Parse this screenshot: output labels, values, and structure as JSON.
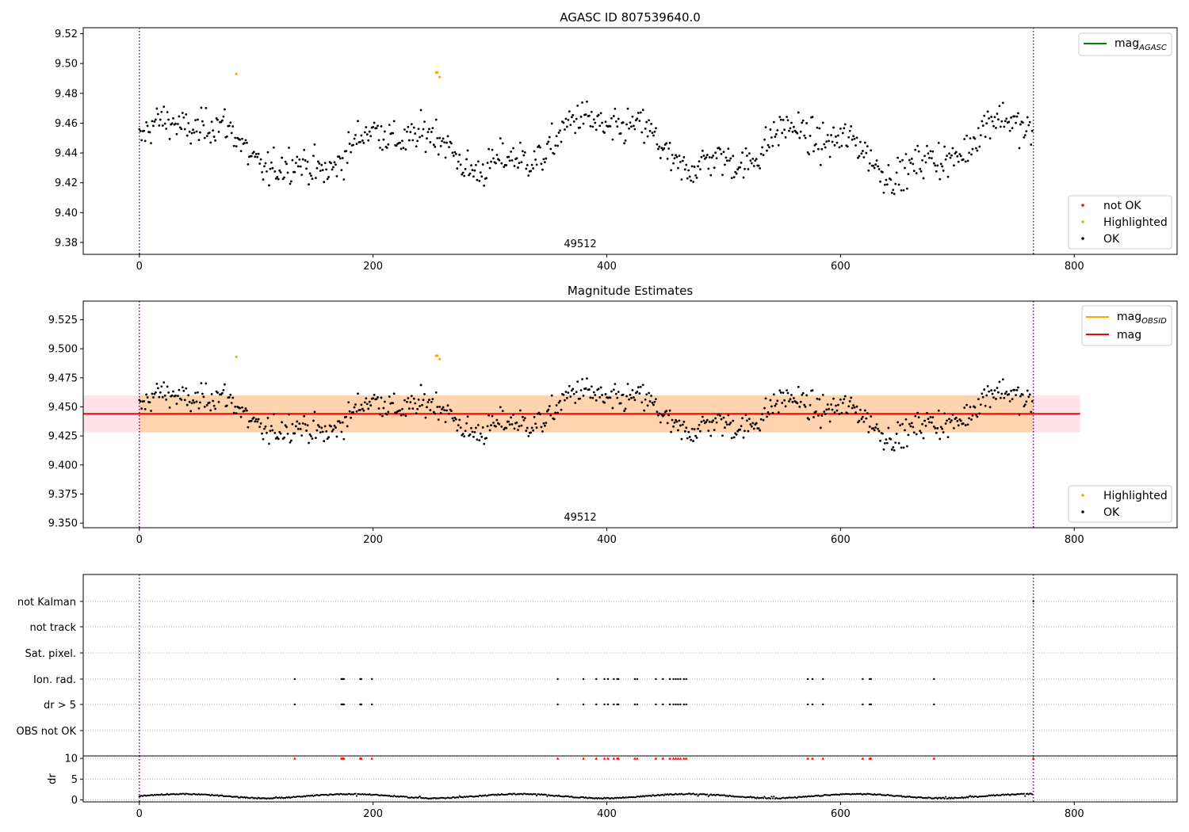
{
  "chart_data": [
    {
      "type": "scatter",
      "title": "AGASC ID 807539640.0",
      "xlim": [
        -48,
        888
      ],
      "ylim": [
        9.372,
        9.524
      ],
      "xticks": [
        0,
        200,
        400,
        600,
        800
      ],
      "yticks": [
        9.38,
        9.4,
        9.42,
        9.44,
        9.46,
        9.48,
        9.5,
        9.52
      ],
      "annotation": "49512",
      "vlines": [
        0,
        765
      ],
      "legend_upper": [
        {
          "name": "mag_AGASC",
          "main": "mag",
          "sub": "AGASC",
          "color": "#008000"
        }
      ],
      "legend_lower": [
        {
          "name": "not OK",
          "label": "not OK",
          "color": "#ff0000"
        },
        {
          "name": "Highlighted",
          "label": "Highlighted",
          "color": "#ffa500"
        },
        {
          "name": "OK",
          "label": "OK",
          "color": "#000000"
        }
      ],
      "highlighted": [
        [
          83,
          9.493
        ],
        [
          254,
          9.494
        ],
        [
          255,
          9.494
        ],
        [
          257,
          9.491
        ]
      ],
      "series_seed": 7
    },
    {
      "type": "scatter",
      "title": "Magnitude Estimates",
      "xlim": [
        -48,
        888
      ],
      "ylim": [
        9.346,
        9.541
      ],
      "xticks": [
        0,
        200,
        400,
        600,
        800
      ],
      "yticks": [
        9.35,
        9.375,
        9.4,
        9.425,
        9.45,
        9.475,
        9.5,
        9.525
      ],
      "annotation": "49512",
      "vlines": [
        0,
        765
      ],
      "mag_line": 9.444,
      "band_inner": [
        9.428,
        9.46
      ],
      "band_outer": [
        9.428,
        9.46
      ],
      "legend_upper": [
        {
          "name": "mag_OBSID",
          "main": "mag",
          "sub": "OBSID",
          "color": "#ffa500"
        },
        {
          "name": "mag",
          "main": "mag",
          "sub": "",
          "color": "#ff0000"
        }
      ],
      "legend_lower": [
        {
          "name": "Highlighted",
          "label": "Highlighted",
          "color": "#ffa500"
        },
        {
          "name": "OK",
          "label": "OK",
          "color": "#000000"
        }
      ],
      "highlighted": [
        [
          83,
          9.493
        ],
        [
          254,
          9.494
        ],
        [
          255,
          9.494
        ],
        [
          257,
          9.491
        ]
      ]
    },
    {
      "type": "scatter",
      "title": "",
      "xlim": [
        -48,
        888
      ],
      "xticks": [
        0,
        200,
        400,
        600,
        800
      ],
      "flag_rows": [
        "not Kalman",
        "not track",
        "Sat. pixel.",
        "Ion. rad.",
        "dr > 5",
        "OBS not OK"
      ],
      "flag_x": [
        133,
        173,
        174,
        175,
        189,
        190,
        199,
        358,
        380,
        391,
        398,
        401,
        406,
        409,
        410,
        424,
        426,
        442,
        448,
        454,
        457,
        459,
        461,
        463,
        466,
        468,
        572,
        576,
        585,
        619,
        625,
        626,
        680
      ],
      "dr_ylabel": "dr",
      "dr_yticks": [
        0,
        5,
        10
      ],
      "dr_ylim": [
        -0.5,
        10.6
      ],
      "dr_flag_value": 10
    }
  ]
}
